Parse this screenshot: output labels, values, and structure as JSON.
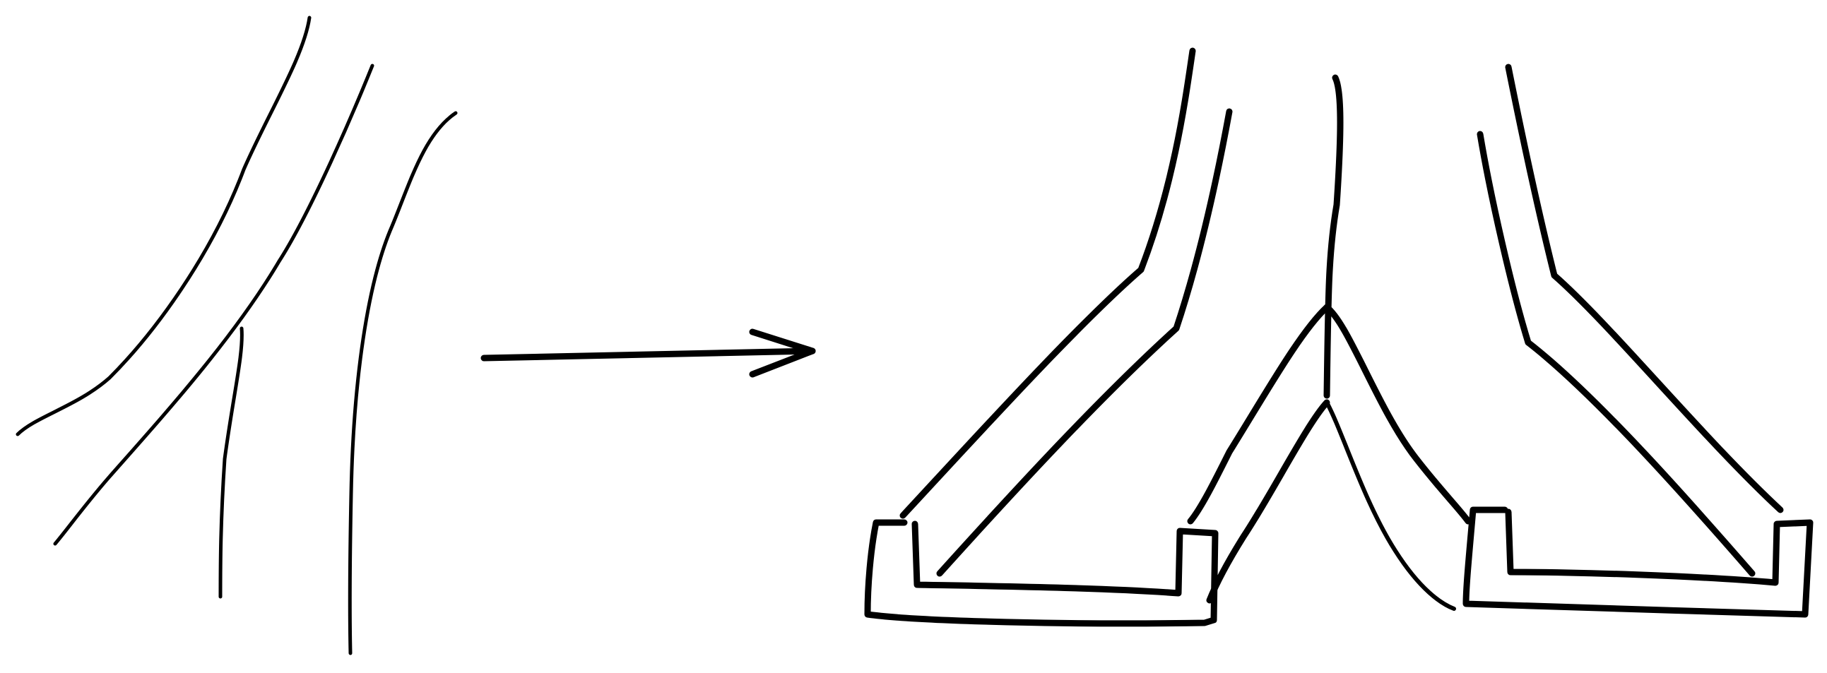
{
  "figure": {
    "panels": [
      {
        "id": "left",
        "description_kind": "sketch"
      },
      {
        "id": "right",
        "description_kind": "sketch"
      }
    ],
    "connector": {
      "kind": "arrow",
      "direction": "right"
    }
  },
  "colors": {
    "background": "#ffffff",
    "ink": "#000000"
  },
  "icons": [
    "arrow-right-icon"
  ]
}
